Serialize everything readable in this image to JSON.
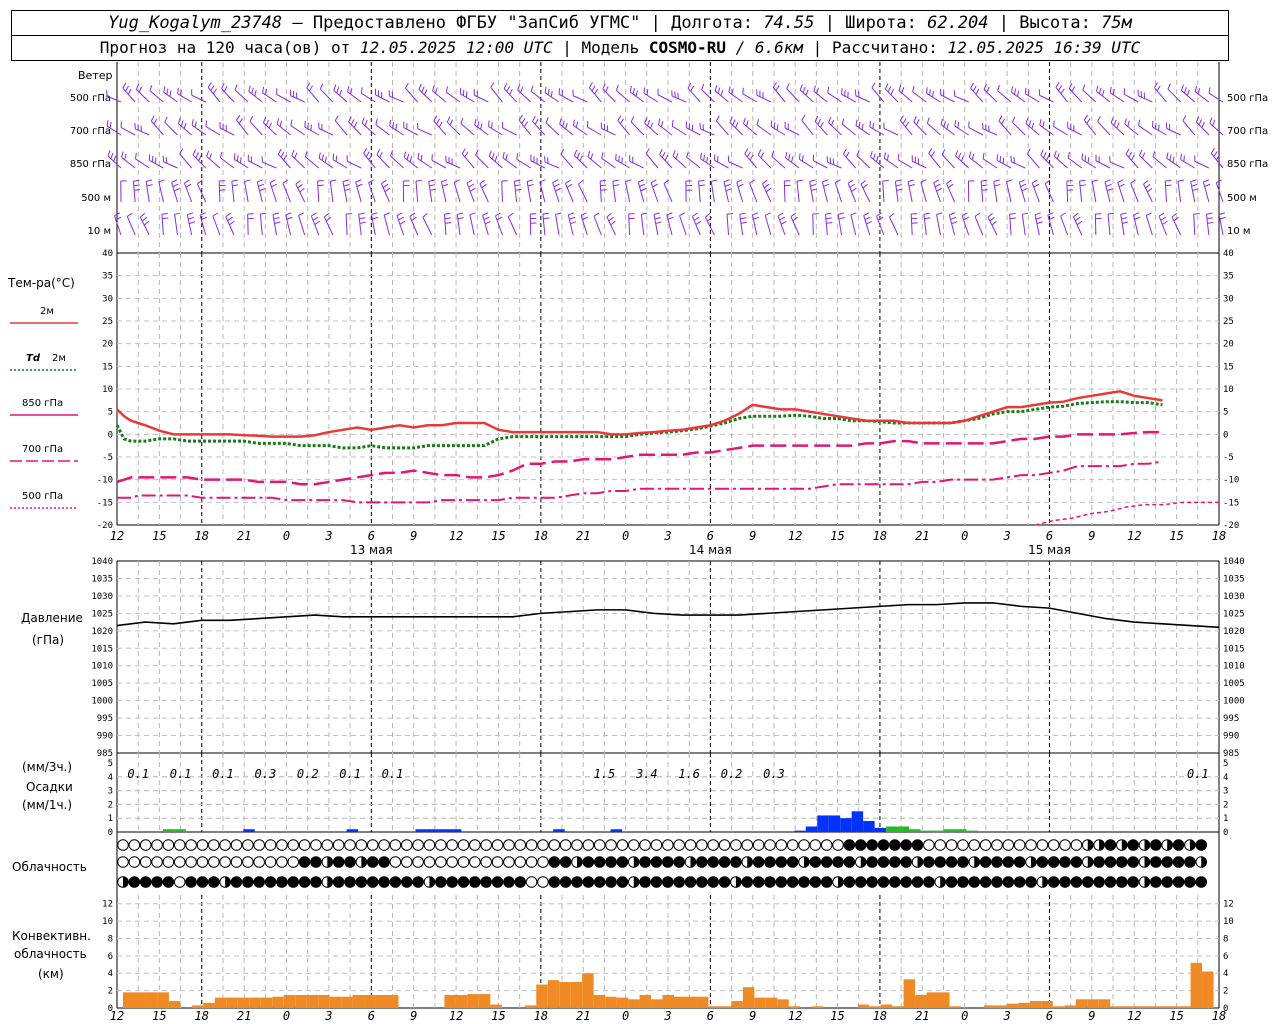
{
  "header": {
    "station": "Yug_Kogalym_23748",
    "dash": "—",
    "provider": "Предоставлено ФГБУ \"ЗапСиб УГМС\"",
    "lon_label": "| Долгота:",
    "lon": "74.55",
    "lat_label": "| Широта:",
    "lat": "62.204",
    "alt_label": "| Высота:",
    "alt": "75м",
    "fc_label": "Прогноз на 120 часа(ов) от",
    "fc_time": "12.05.2025 12:00 UTC",
    "model_label": "| Модель",
    "model": "COSMO-RU",
    "res": "/ 6.6км",
    "calc_label": "| Рассчитано:",
    "calc_time": "12.05.2025 16:39 UTC"
  },
  "wind_panel": {
    "title": "Ветер",
    "levels": [
      "500 гПа",
      "700 гПа",
      "850 гПа",
      "500 м",
      "10  м"
    ],
    "barb_color": "#8a2be2"
  },
  "temp_panel": {
    "title": "Тем-ра(°C)",
    "legend": [
      {
        "label": "2м",
        "color": "#e8393a",
        "style": "solid"
      },
      {
        "label_it": "Td",
        "label": "2м",
        "color": "#1a7a1a",
        "style": "dotted"
      },
      {
        "label": "850 гПа",
        "color": "#e0167a",
        "style": "solid"
      },
      {
        "label": "700 гПа",
        "color": "#e0167a",
        "style": "dashed"
      },
      {
        "label": "500 гПа",
        "color": "#e0167a",
        "style": "dotted"
      }
    ],
    "yticks": [
      "40",
      "35",
      "30",
      "25",
      "20",
      "15",
      "10",
      "5",
      "0",
      "-5",
      "-10",
      "-15",
      "-20"
    ],
    "xticks": [
      "12",
      "15",
      "18",
      "21",
      "0",
      "3",
      "6",
      "9",
      "12",
      "15",
      "18",
      "21",
      "0",
      "3",
      "6",
      "9",
      "12",
      "15",
      "18",
      "21",
      "0",
      "3",
      "6",
      "9",
      "12",
      "15",
      "18"
    ],
    "dates": [
      "13 мая",
      "14 мая",
      "15 мая"
    ]
  },
  "press_panel": {
    "title": "Давление",
    "unit": "(гПа)",
    "yticks": [
      "1040",
      "1035",
      "1030",
      "1025",
      "1020",
      "1015",
      "1010",
      "1005",
      "1000",
      "995",
      "990",
      "985"
    ]
  },
  "precip_panel": {
    "unit3": "(мм/3ч.)",
    "title": "Осадки",
    "unit1": "(мм/1ч.)",
    "yticks": [
      "5",
      "4",
      "3",
      "2",
      "1",
      "0"
    ],
    "amounts": [
      {
        "hour": 3,
        "text": "0.1"
      },
      {
        "hour": 9,
        "text": "0.1"
      },
      {
        "hour": 15,
        "text": "0.1"
      },
      {
        "hour": 21,
        "text": "0.3"
      },
      {
        "hour": 27,
        "text": "0.2"
      },
      {
        "hour": 33,
        "text": "0.1"
      },
      {
        "hour": 39,
        "text": "0.1"
      },
      {
        "hour": 69,
        "text": "1.5"
      },
      {
        "hour": 75,
        "text": "3.4"
      },
      {
        "hour": 81,
        "text": "1.6"
      },
      {
        "hour": 87,
        "text": "0.2"
      },
      {
        "hour": 93,
        "text": "0.3"
      },
      {
        "hour": 153,
        "text": "0.1"
      }
    ]
  },
  "cloud_panel": {
    "title": "Облачность"
  },
  "conv_panel": {
    "title1": "Конвективн.",
    "title2": "облачность",
    "unit": "(км)",
    "yticks": [
      "12",
      "10",
      "8",
      "6",
      "4",
      "2",
      "0"
    ]
  },
  "chart_data": [
    {
      "type": "line",
      "name": "temperature",
      "x_hours": [
        0,
        1,
        2,
        3,
        4,
        6,
        8,
        10,
        12,
        14,
        16,
        18,
        20,
        22,
        24,
        26,
        28,
        30,
        32,
        34,
        36,
        38,
        40,
        42,
        44,
        46,
        48,
        50,
        52,
        54,
        56,
        58,
        60,
        62,
        64,
        66,
        68,
        70,
        72,
        74,
        76,
        78,
        80,
        82,
        84,
        86,
        88,
        90,
        92,
        94,
        96,
        98,
        100,
        102,
        104,
        106,
        108,
        110,
        112,
        114,
        116,
        118,
        120,
        122,
        124,
        126,
        128,
        130,
        132,
        134,
        136,
        138,
        140,
        142,
        144,
        146,
        148,
        150,
        152,
        154,
        156
      ],
      "t2m": [
        5.5,
        4,
        3,
        2.5,
        2,
        0.8,
        0,
        0,
        0,
        0,
        0,
        -0.2,
        -0.3,
        -0.5,
        -0.5,
        -0.5,
        -0.2,
        0.5,
        1,
        1.5,
        1,
        1.5,
        2,
        1.5,
        2,
        2,
        2.5,
        2.5,
        2.5,
        1,
        0.5,
        0.5,
        0.5,
        0.5,
        0.5,
        0.5,
        0.5,
        0,
        0,
        0.3,
        0.5,
        0.8,
        1,
        1.5,
        2,
        3,
        4.5,
        6.5,
        6,
        5.5,
        5.5,
        5,
        4.5,
        4,
        3.5,
        3,
        3,
        3,
        2.5,
        2.5,
        2.5,
        2.5,
        3,
        4,
        5,
        6,
        6,
        6.5,
        7,
        7.2,
        8,
        8.5,
        9,
        9.5,
        8.5,
        8,
        7.5
      ],
      "td2m": [
        2,
        -1,
        -1.5,
        -1.5,
        -1.5,
        -1,
        -1,
        -1.5,
        -1.5,
        -1.5,
        -1.5,
        -1.5,
        -2,
        -2,
        -2,
        -2.5,
        -2.5,
        -2.5,
        -3,
        -3,
        -2.5,
        -3,
        -3,
        -3,
        -2.5,
        -2.5,
        -2.5,
        -2.5,
        -2.5,
        -1,
        -0.5,
        -0.5,
        -0.5,
        -0.5,
        -0.5,
        -0.5,
        -0.5,
        -0.5,
        -0.5,
        0,
        0.3,
        0.5,
        0.8,
        1.2,
        1.8,
        2.5,
        3.5,
        4,
        4,
        4,
        4.2,
        4,
        3.5,
        3.5,
        3,
        3,
        2.8,
        2.5,
        2.5,
        2.5,
        2.5,
        2.5,
        3,
        3.5,
        4.5,
        5,
        5,
        5.5,
        6,
        6.2,
        6.8,
        7,
        7.2,
        7.2,
        7,
        7,
        6.5
      ],
      "t850": [
        -10.5,
        -10,
        -9.5,
        -9.5,
        -9.5,
        -9.5,
        -9.5,
        -9.5,
        -10,
        -10,
        -10,
        -10,
        -10.5,
        -10.5,
        -10.5,
        -11,
        -11,
        -10.5,
        -10,
        -9.5,
        -9,
        -8.5,
        -8.5,
        -8,
        -8.5,
        -9,
        -9,
        -9.5,
        -9.5,
        -9,
        -8,
        -6.5,
        -6.5,
        -6,
        -6,
        -5.5,
        -5.5,
        -5.5,
        -5,
        -4.5,
        -4.5,
        -4.5,
        -4.5,
        -4,
        -4,
        -3.5,
        -3,
        -2.5,
        -2.5,
        -2.5,
        -2.5,
        -2.5,
        -2.5,
        -2.5,
        -2.5,
        -2,
        -2,
        -1.5,
        -1.5,
        -2,
        -2,
        -2,
        -2,
        -2,
        -2,
        -1.5,
        -1,
        -1,
        -0.5,
        -0.5,
        0,
        0,
        0,
        0,
        0.3,
        0.5,
        0.5
      ],
      "t700": [
        -14,
        -14,
        -14,
        -13.5,
        -13.5,
        -13.5,
        -13.5,
        -13.5,
        -14,
        -14,
        -14,
        -14,
        -14,
        -14,
        -14.5,
        -14.5,
        -14.5,
        -14.5,
        -14.5,
        -15,
        -15,
        -15,
        -15,
        -15,
        -15,
        -14.5,
        -14.5,
        -14.5,
        -14.5,
        -14.5,
        -14,
        -14,
        -14,
        -14,
        -13.5,
        -13,
        -13,
        -12.5,
        -12.5,
        -12,
        -12,
        -12,
        -12,
        -12,
        -12,
        -12,
        -12,
        -12,
        -12,
        -12,
        -12,
        -12,
        -11.5,
        -11,
        -11,
        -11,
        -11,
        -11,
        -11,
        -10.5,
        -10.5,
        -10,
        -10,
        -10,
        -10,
        -9.5,
        -9,
        -9,
        -8.5,
        -8,
        -7,
        -7,
        -7,
        -7,
        -6.5,
        -6.5,
        -6
      ],
      "t500_from_hour": 130,
      "t500": [
        -20,
        -19,
        -18.5,
        -17.5,
        -17,
        -16,
        -15.5,
        -15.5,
        -15,
        -15,
        -15
      ],
      "ylim": [
        -20,
        40
      ]
    },
    {
      "type": "line",
      "name": "pressure",
      "x_hours": [
        0,
        4,
        8,
        12,
        16,
        20,
        24,
        28,
        32,
        36,
        40,
        44,
        48,
        52,
        56,
        60,
        64,
        68,
        72,
        76,
        80,
        84,
        88,
        92,
        96,
        100,
        104,
        108,
        112,
        116,
        120,
        124,
        128,
        132,
        136,
        140,
        144,
        148,
        152,
        156
      ],
      "values": [
        1021.5,
        1022.5,
        1022,
        1023,
        1023,
        1023.5,
        1024,
        1024.5,
        1024,
        1024,
        1024,
        1024,
        1024,
        1024,
        1024,
        1025,
        1025.5,
        1026,
        1026,
        1025,
        1024.5,
        1024.5,
        1024.5,
        1025,
        1025.5,
        1026,
        1026.5,
        1027,
        1027.5,
        1027.5,
        1028,
        1028,
        1027,
        1026.5,
        1025,
        1023.5,
        1022.5,
        1022,
        1021.5,
        1021
      ],
      "ylim": [
        985,
        1040
      ]
    },
    {
      "type": "bar",
      "name": "precipitation_1h",
      "series": [
        {
          "color": "#0033ff",
          "bars": [
            [
              11,
              0.2
            ],
            [
              20,
              0.2
            ],
            [
              26,
              0.2
            ],
            [
              27,
              0.2
            ],
            [
              28,
              0.2
            ],
            [
              29,
              0.2
            ],
            [
              38,
              0.2
            ],
            [
              43,
              0.2
            ],
            [
              59,
              0.1
            ],
            [
              60,
              0.4
            ],
            [
              61,
              1.2
            ],
            [
              62,
              1.2
            ],
            [
              63,
              1.0
            ],
            [
              64,
              1.5
            ],
            [
              65,
              0.8
            ],
            [
              66,
              0.3
            ]
          ]
        },
        {
          "color": "#22bb22",
          "bars": [
            [
              4,
              0.2
            ],
            [
              5,
              0.2
            ],
            [
              67,
              0.4
            ],
            [
              68,
              0.4
            ],
            [
              69,
              0.2
            ],
            [
              70,
              0.1
            ],
            [
              71,
              0.1
            ],
            [
              72,
              0.2
            ],
            [
              73,
              0.2
            ],
            [
              74,
              0.1
            ],
            [
              115,
              0.1
            ],
            [
              151,
              0.1
            ]
          ]
        }
      ],
      "ylim": [
        0,
        5
      ]
    },
    {
      "type": "bar",
      "name": "convective_cloud_km",
      "bars": [
        [
          0,
          1.8
        ],
        [
          1,
          1.8
        ],
        [
          2,
          1.8
        ],
        [
          3,
          1.8
        ],
        [
          4,
          0.8
        ],
        [
          6,
          0.3
        ],
        [
          7,
          0.6
        ],
        [
          8,
          1.2
        ],
        [
          9,
          1.2
        ],
        [
          10,
          1.2
        ],
        [
          11,
          1.2
        ],
        [
          12,
          1.2
        ],
        [
          13,
          1.3
        ],
        [
          14,
          1.5
        ],
        [
          15,
          1.5
        ],
        [
          16,
          1.5
        ],
        [
          17,
          1.5
        ],
        [
          18,
          1.3
        ],
        [
          19,
          1.3
        ],
        [
          20,
          1.5
        ],
        [
          21,
          1.5
        ],
        [
          22,
          1.5
        ],
        [
          23,
          1.5
        ],
        [
          28,
          1.5
        ],
        [
          29,
          1.5
        ],
        [
          30,
          1.6
        ],
        [
          31,
          1.6
        ],
        [
          32,
          0.4
        ],
        [
          35,
          0.3
        ],
        [
          36,
          2.7
        ],
        [
          37,
          3.2
        ],
        [
          38,
          3.0
        ],
        [
          39,
          3.0
        ],
        [
          40,
          4.0
        ],
        [
          41,
          1.5
        ],
        [
          42,
          1.3
        ],
        [
          43,
          1.2
        ],
        [
          44,
          1.0
        ],
        [
          45,
          1.5
        ],
        [
          46,
          1.0
        ],
        [
          47,
          1.5
        ],
        [
          48,
          1.3
        ],
        [
          49,
          1.3
        ],
        [
          50,
          1.3
        ],
        [
          51,
          0.2
        ],
        [
          52,
          0.2
        ],
        [
          53,
          0.8
        ],
        [
          54,
          2.4
        ],
        [
          55,
          1.2
        ],
        [
          56,
          1.2
        ],
        [
          57,
          1.0
        ],
        [
          58,
          0.2
        ],
        [
          60,
          0.2
        ],
        [
          64,
          0.4
        ],
        [
          65,
          0.2
        ],
        [
          66,
          0.4
        ],
        [
          67,
          0.2
        ],
        [
          68,
          3.3
        ],
        [
          69,
          1.5
        ],
        [
          70,
          1.8
        ],
        [
          71,
          1.8
        ],
        [
          72,
          0.2
        ],
        [
          75,
          0.3
        ],
        [
          76,
          0.3
        ],
        [
          77,
          0.5
        ],
        [
          78,
          0.6
        ],
        [
          79,
          0.8
        ],
        [
          80,
          0.8
        ],
        [
          81,
          0.2
        ],
        [
          82,
          0.3
        ],
        [
          83,
          1.0
        ],
        [
          84,
          1.0
        ],
        [
          85,
          1.0
        ],
        [
          86,
          0.2
        ],
        [
          87,
          0.2
        ],
        [
          88,
          0.2
        ],
        [
          89,
          0.2
        ],
        [
          90,
          0.2
        ],
        [
          91,
          0.2
        ],
        [
          92,
          0.2
        ],
        [
          93,
          5.2
        ],
        [
          94,
          4.2
        ]
      ],
      "bar_width_hours": 1.62,
      "ylim": [
        0,
        13
      ]
    }
  ]
}
